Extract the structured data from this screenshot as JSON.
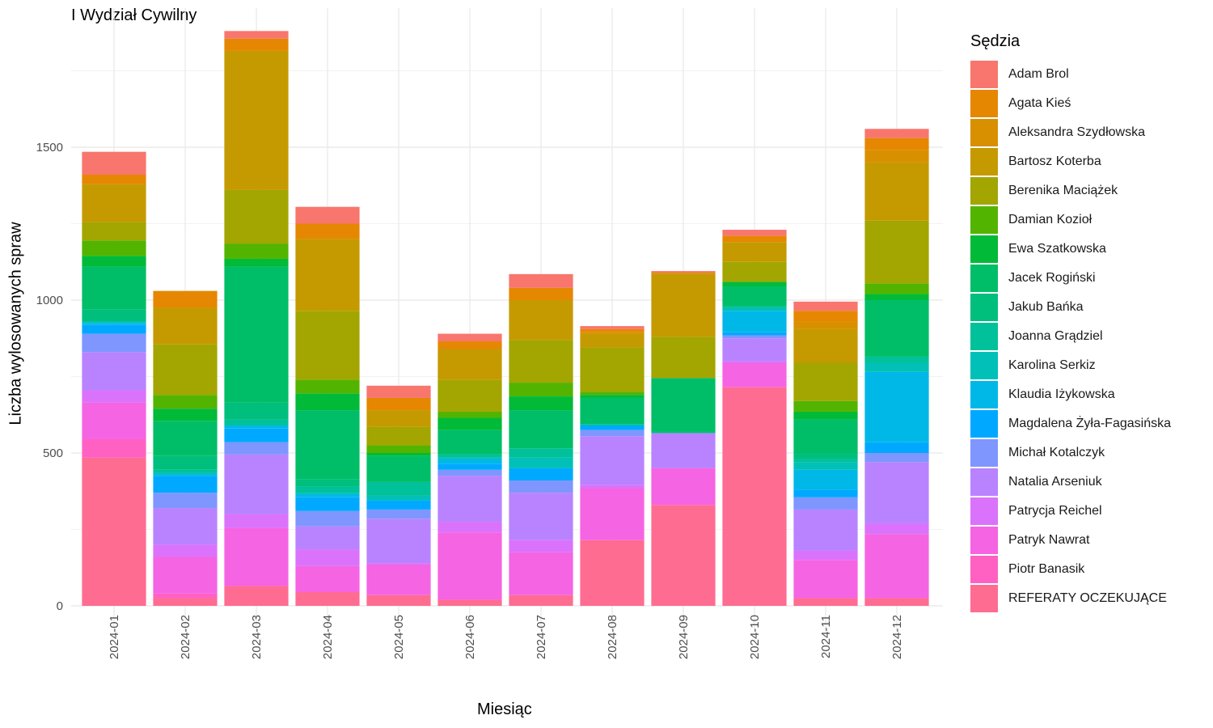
{
  "chart_data": {
    "type": "bar",
    "stacked": true,
    "title": "I Wydział Cywilny",
    "xlabel": "Miesiąc",
    "ylabel": "Liczba wylosowanych spraw",
    "legend_title": "Sędzia",
    "legend_position": "right",
    "grid": true,
    "ylim": [
      0,
      1900
    ],
    "yticks": [
      0,
      500,
      1000,
      1500
    ],
    "categories": [
      "2024-01",
      "2024-02",
      "2024-03",
      "2024-04",
      "2024-05",
      "2024-06",
      "2024-07",
      "2024-08",
      "2024-09",
      "2024-10",
      "2024-11",
      "2024-12"
    ],
    "series": [
      {
        "name": "REFERATY OCZEKUJĄCE",
        "color": "#FF6C91",
        "values": [
          485,
          25,
          65,
          45,
          35,
          20,
          35,
          215,
          330,
          715,
          25,
          25
        ]
      },
      {
        "name": "Piotr Banasik",
        "color": "#FF61C3",
        "values": [
          60,
          15,
          0,
          0,
          0,
          0,
          0,
          0,
          0,
          0,
          0,
          0
        ]
      },
      {
        "name": "Patryk Nawrat",
        "color": "#F564E3",
        "values": [
          120,
          120,
          190,
          85,
          100,
          220,
          140,
          170,
          120,
          80,
          125,
          210
        ]
      },
      {
        "name": "Patrycja Reichel",
        "color": "#DB72FB",
        "values": [
          40,
          40,
          45,
          55,
          5,
          35,
          40,
          10,
          0,
          5,
          30,
          35
        ]
      },
      {
        "name": "Natalia Arseniuk",
        "color": "#B983FF",
        "values": [
          125,
          120,
          195,
          75,
          145,
          150,
          155,
          160,
          115,
          75,
          135,
          200
        ]
      },
      {
        "name": "Michał Kotalczyk",
        "color": "#7F96FF",
        "values": [
          60,
          50,
          40,
          50,
          30,
          20,
          40,
          20,
          0,
          10,
          40,
          30
        ]
      },
      {
        "name": "Magdalena Żyła-Fagasińska",
        "color": "#00A9FF",
        "values": [
          30,
          55,
          45,
          45,
          30,
          20,
          40,
          15,
          0,
          10,
          25,
          35
        ]
      },
      {
        "name": "Klaudia Iżykowska",
        "color": "#00B8E7",
        "values": [
          5,
          5,
          10,
          10,
          0,
          15,
          0,
          0,
          0,
          70,
          65,
          230
        ]
      },
      {
        "name": "Karolina Serkiz",
        "color": "#00C0B8",
        "values": [
          5,
          5,
          0,
          5,
          15,
          5,
          35,
          0,
          0,
          10,
          25,
          30
        ]
      },
      {
        "name": "Joanna Grądziel",
        "color": "#00C19A",
        "values": [
          0,
          10,
          20,
          20,
          45,
          10,
          30,
          5,
          0,
          5,
          10,
          20
        ]
      },
      {
        "name": "Jakub Bańka",
        "color": "#00BF7D",
        "values": [
          40,
          45,
          55,
          25,
          0,
          0,
          0,
          0,
          5,
          0,
          20,
          0
        ]
      },
      {
        "name": "Jacek Rogiński",
        "color": "#00BE67",
        "values": [
          140,
          115,
          445,
          225,
          85,
          80,
          125,
          85,
          175,
          65,
          110,
          185
        ]
      },
      {
        "name": "Ewa Szatkowska",
        "color": "#00BA38",
        "values": [
          35,
          40,
          25,
          55,
          10,
          40,
          45,
          10,
          0,
          15,
          25,
          20
        ]
      },
      {
        "name": "Damian Kozioł",
        "color": "#53B400",
        "values": [
          50,
          45,
          50,
          45,
          25,
          20,
          45,
          10,
          0,
          0,
          35,
          35
        ]
      },
      {
        "name": "Berenika Maciążek",
        "color": "#A3A500",
        "values": [
          60,
          165,
          175,
          225,
          60,
          105,
          140,
          145,
          135,
          65,
          125,
          205
        ]
      },
      {
        "name": "Bartosz Koterba",
        "color": "#C49A00",
        "values": [
          125,
          120,
          455,
          235,
          55,
          100,
          130,
          45,
          205,
          65,
          110,
          190
        ]
      },
      {
        "name": "Aleksandra Szydłowska",
        "color": "#D89000",
        "values": [
          0,
          0,
          0,
          0,
          0,
          0,
          0,
          5,
          5,
          0,
          25,
          40
        ]
      },
      {
        "name": "Agata Kieś",
        "color": "#E58700",
        "values": [
          30,
          55,
          40,
          50,
          40,
          25,
          40,
          10,
          0,
          20,
          35,
          40
        ]
      },
      {
        "name": "Adam Brol",
        "color": "#F8766D",
        "values": [
          75,
          0,
          25,
          55,
          40,
          25,
          45,
          10,
          5,
          20,
          30,
          30
        ]
      }
    ]
  }
}
